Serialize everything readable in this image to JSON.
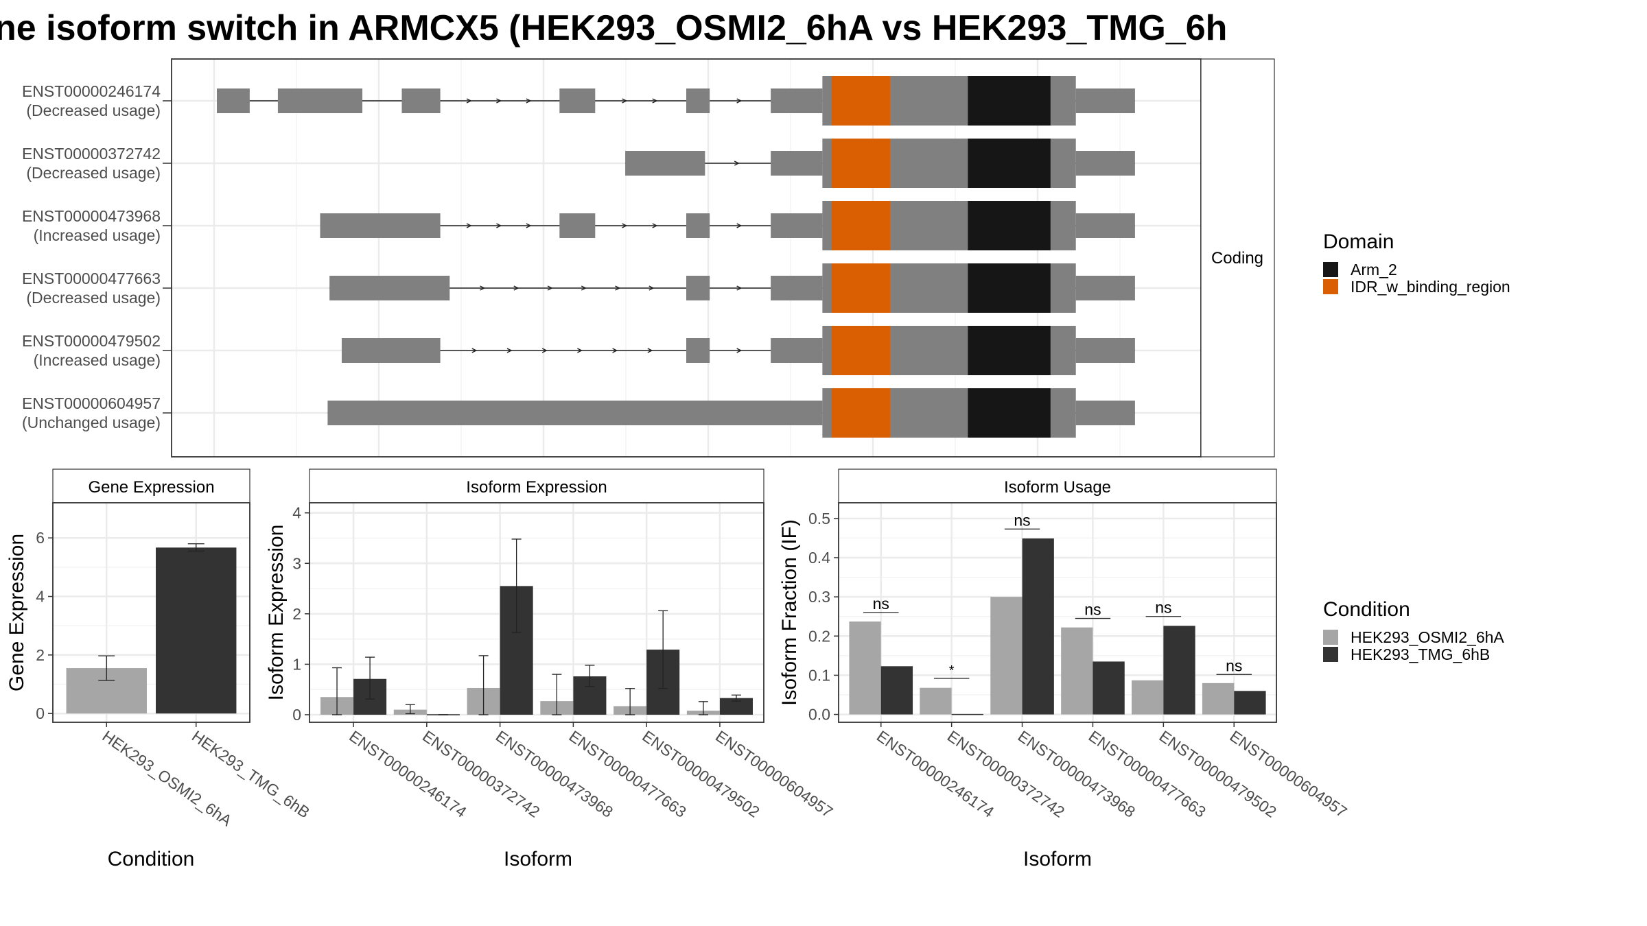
{
  "title": "ne isoform switch in ARMCX5 (HEK293_OSMI2_6hA vs HEK293_TMG_6h",
  "colors": {
    "cond_a": "#a6a6a6",
    "cond_b": "#333333",
    "exon": "#808080",
    "arm2": "#161616",
    "idr": "#d95f02",
    "grid": "#ebebeb",
    "strip_bg": "#ffffff"
  },
  "structure": {
    "strip_label": "Coding",
    "x_range": [
      0,
      100
    ],
    "transcripts": [
      {
        "id": "ENST00000246174",
        "usage": "(Decreased usage)",
        "exons": [
          [
            0,
            3.5
          ],
          [
            6.5,
            15.5
          ],
          [
            19.7,
            23.8
          ],
          [
            36.5,
            40.3
          ],
          [
            50,
            52.5
          ],
          [
            59,
            64.5
          ],
          [
            64.5,
            91.5
          ],
          [
            91.5,
            97.8
          ]
        ],
        "cds": [
          64.5,
          91.5
        ]
      },
      {
        "id": "ENST00000372742",
        "usage": "(Decreased usage)",
        "exons": [
          [
            43.5,
            52
          ],
          [
            59,
            64.5
          ],
          [
            64.5,
            91.5
          ],
          [
            91.5,
            97.8
          ]
        ],
        "cds": [
          64.5,
          91.5
        ]
      },
      {
        "id": "ENST00000473968",
        "usage": "(Increased usage)",
        "exons": [
          [
            11,
            23.8
          ],
          [
            36.5,
            40.3
          ],
          [
            50,
            52.5
          ],
          [
            59,
            64.5
          ],
          [
            64.5,
            91.5
          ],
          [
            91.5,
            97.8
          ]
        ],
        "cds": [
          64.5,
          91.5
        ]
      },
      {
        "id": "ENST00000477663",
        "usage": "(Decreased usage)",
        "exons": [
          [
            12,
            24.8
          ],
          [
            50,
            52.5
          ],
          [
            59,
            64.5
          ],
          [
            64.5,
            91.5
          ],
          [
            91.5,
            97.8
          ]
        ],
        "cds": [
          64.5,
          91.5
        ]
      },
      {
        "id": "ENST00000479502",
        "usage": "(Increased usage)",
        "exons": [
          [
            13.3,
            23.8
          ],
          [
            50,
            52.5
          ],
          [
            59,
            64.5
          ],
          [
            64.5,
            91.5
          ],
          [
            91.5,
            97.8
          ]
        ],
        "cds": [
          64.5,
          91.5
        ]
      },
      {
        "id": "ENST00000604957",
        "usage": "(Unchanged usage)",
        "exons": [
          [
            11.8,
            64.5
          ],
          [
            64.5,
            91.5
          ],
          [
            91.5,
            97.8
          ]
        ],
        "cds": [
          64.5,
          91.5
        ]
      }
    ],
    "domains": [
      {
        "name": "IDR_w_binding_region",
        "start": 65.5,
        "end": 71.7
      },
      {
        "name": "Arm_2",
        "start": 80,
        "end": 88.8
      }
    ]
  },
  "legends": {
    "domain": {
      "title": "Domain",
      "items": [
        {
          "label": "Arm_2",
          "color": "#161616"
        },
        {
          "label": "IDR_w_binding_region",
          "color": "#d95f02"
        }
      ]
    },
    "condition": {
      "title": "Condition",
      "items": [
        {
          "label": "HEK293_OSMI2_6hA",
          "color": "#a6a6a6"
        },
        {
          "label": "HEK293_TMG_6hB",
          "color": "#333333"
        }
      ]
    }
  },
  "chart_data": [
    {
      "type": "bar",
      "title": "Gene Expression",
      "xlabel": "Condition",
      "ylabel": "Gene Expression",
      "categories": [
        "HEK293_OSMI2_6hA",
        "HEK293_TMG_6hB"
      ],
      "values": [
        1.55,
        5.67
      ],
      "errors": [
        [
          1.13,
          1.97
        ],
        [
          5.55,
          5.8
        ]
      ],
      "ylim": [
        -0.3,
        7.2
      ],
      "yticks": [
        0,
        2,
        4,
        6
      ]
    },
    {
      "type": "bar",
      "title": "Isoform Expression",
      "xlabel": "Isoform",
      "ylabel": "Isoform Expression",
      "categories": [
        "ENST00000246174",
        "ENST00000372742",
        "ENST00000473968",
        "ENST00000477663",
        "ENST00000479502",
        "ENST00000604957"
      ],
      "series": [
        {
          "name": "HEK293_OSMI2_6hA",
          "values": [
            0.35,
            0.1,
            0.53,
            0.27,
            0.17,
            0.08
          ],
          "errors": [
            [
              0,
              0.93
            ],
            [
              0.02,
              0.2
            ],
            [
              0,
              1.17
            ],
            [
              0,
              0.8
            ],
            [
              0,
              0.52
            ],
            [
              0,
              0.26
            ]
          ]
        },
        {
          "name": "HEK293_TMG_6hB",
          "values": [
            0.71,
            0,
            2.55,
            0.76,
            1.29,
            0.33
          ],
          "errors": [
            [
              0.31,
              1.14
            ],
            [
              0,
              0
            ],
            [
              1.63,
              3.48
            ],
            [
              0.56,
              0.98
            ],
            [
              0.52,
              2.06
            ],
            [
              0.27,
              0.39
            ]
          ]
        }
      ],
      "ylim": [
        -0.15,
        4.2
      ],
      "yticks": [
        0,
        1,
        2,
        3,
        4
      ]
    },
    {
      "type": "bar",
      "title": "Isoform Usage",
      "xlabel": "Isoform",
      "ylabel": "Isoform Fraction (IF)",
      "categories": [
        "ENST00000246174",
        "ENST00000372742",
        "ENST00000473968",
        "ENST00000477663",
        "ENST00000479502",
        "ENST00000604957"
      ],
      "series": [
        {
          "name": "HEK293_OSMI2_6hA",
          "values": [
            0.237,
            0.068,
            0.3,
            0.222,
            0.087,
            0.08
          ]
        },
        {
          "name": "HEK293_TMG_6hB",
          "values": [
            0.123,
            0,
            0.449,
            0.135,
            0.226,
            0.06
          ]
        }
      ],
      "significance": [
        {
          "label": "ns",
          "y": 0.26
        },
        {
          "label": "*",
          "y": 0.092
        },
        {
          "label": "ns",
          "y": 0.473
        },
        {
          "label": "ns",
          "y": 0.245
        },
        {
          "label": "ns",
          "y": 0.25
        },
        {
          "label": "ns",
          "y": 0.102
        }
      ],
      "ylim": [
        -0.02,
        0.54
      ],
      "yticks": [
        0.0,
        0.1,
        0.2,
        0.3,
        0.4,
        0.5
      ],
      "ytick_labels": [
        "0.0",
        "0.1",
        "0.2",
        "0.3",
        "0.4",
        "0.5"
      ]
    }
  ]
}
